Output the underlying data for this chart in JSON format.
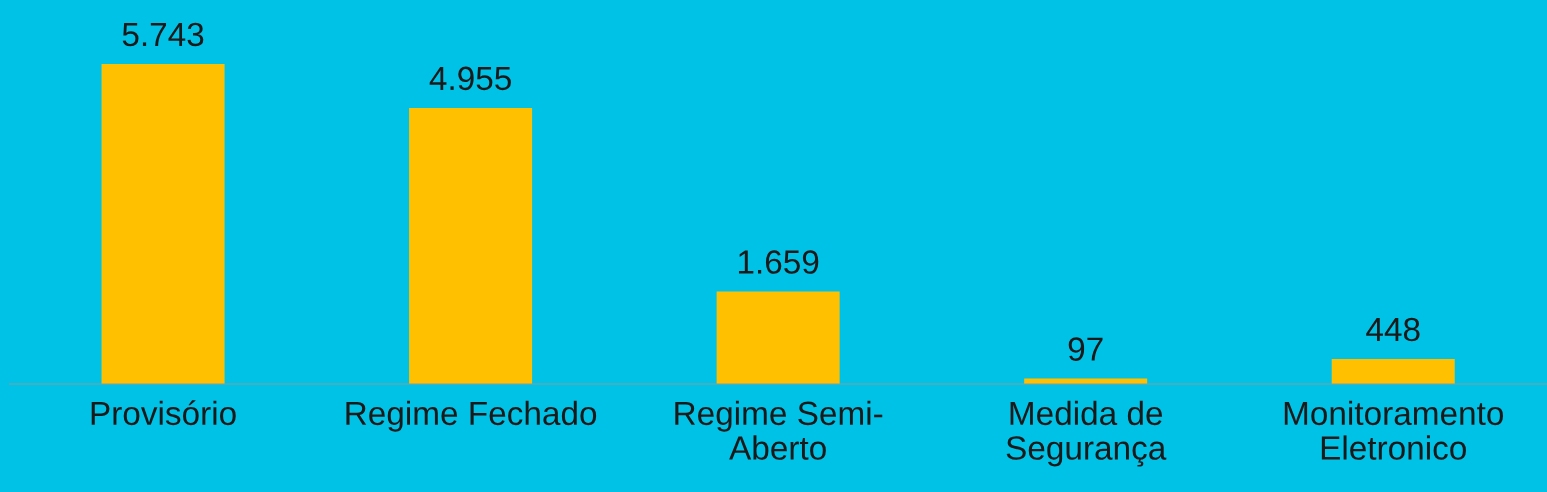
{
  "chart_data": {
    "type": "bar",
    "categories": [
      "Provisório",
      "Regime Fechado",
      "Regime Semi-\nAberto",
      "Medida de\nSegurança",
      "Monitoramento\nEletronico"
    ],
    "values": [
      5743,
      4955,
      1659,
      97,
      448
    ],
    "value_labels": [
      "5.743",
      "4.955",
      "1.659",
      "97",
      "448"
    ],
    "color": "#ffc000",
    "grid": false
  }
}
